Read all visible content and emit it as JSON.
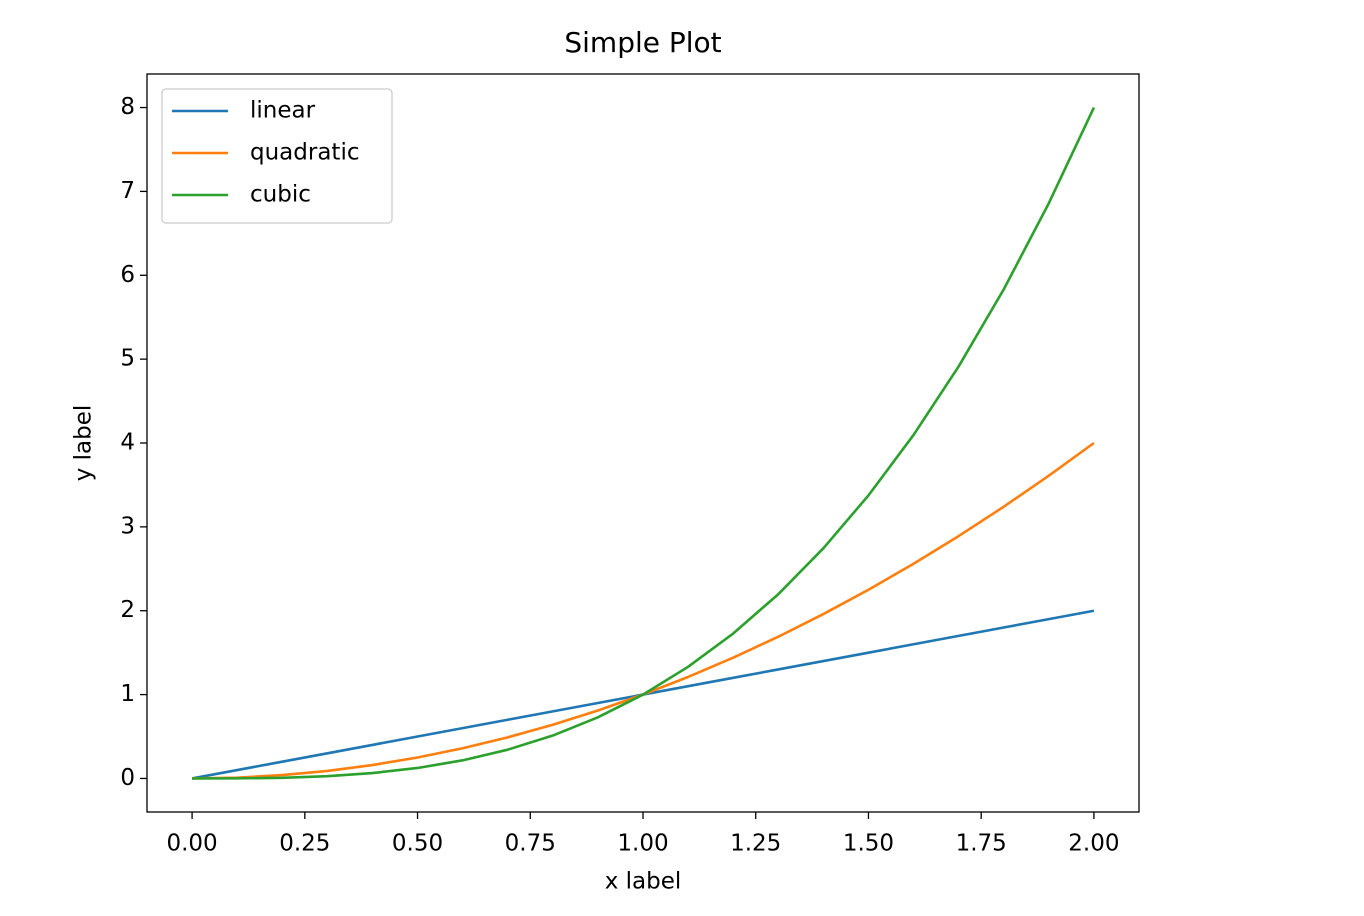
{
  "chart_data": {
    "type": "line",
    "title": "Simple Plot",
    "x_label": "x label",
    "y_label": "y label",
    "x": [
      0,
      0.1,
      0.2,
      0.3,
      0.4,
      0.5,
      0.6,
      0.7,
      0.8,
      0.9,
      1.0,
      1.1,
      1.2,
      1.3,
      1.4,
      1.5,
      1.6,
      1.7,
      1.8,
      1.9,
      2.0
    ],
    "series": [
      {
        "name": "linear",
        "color": "#1f77b4",
        "values": [
          0,
          0.1,
          0.2,
          0.3,
          0.4,
          0.5,
          0.6,
          0.7,
          0.8,
          0.9,
          1.0,
          1.1,
          1.2,
          1.3,
          1.4,
          1.5,
          1.6,
          1.7,
          1.8,
          1.9,
          2.0
        ]
      },
      {
        "name": "quadratic",
        "color": "#ff7f0e",
        "values": [
          0,
          0.01,
          0.04,
          0.09,
          0.16,
          0.25,
          0.36,
          0.49,
          0.64,
          0.81,
          1,
          1.21,
          1.44,
          1.69,
          1.96,
          2.25,
          2.56,
          2.89,
          3.24,
          3.61,
          4
        ]
      },
      {
        "name": "cubic",
        "color": "#2ca02c",
        "values": [
          0,
          0.001,
          0.008,
          0.027,
          0.064,
          0.125,
          0.216,
          0.343,
          0.512,
          0.729,
          1,
          1.331,
          1.728,
          2.197,
          2.744,
          3.375,
          4.096,
          4.913,
          5.832,
          6.859,
          8
        ]
      }
    ],
    "xlim": [
      -0.1,
      2.1
    ],
    "ylim": [
      -0.4,
      8.4
    ],
    "xticks": [
      {
        "value": 0,
        "label": "0.00"
      },
      {
        "value": 0.25,
        "label": "0.25"
      },
      {
        "value": 0.5,
        "label": "0.50"
      },
      {
        "value": 0.75,
        "label": "0.75"
      },
      {
        "value": 1,
        "label": "1.00"
      },
      {
        "value": 1.25,
        "label": "1.25"
      },
      {
        "value": 1.5,
        "label": "1.50"
      },
      {
        "value": 1.75,
        "label": "1.75"
      },
      {
        "value": 2,
        "label": "2.00"
      }
    ],
    "yticks": [
      0,
      1,
      2,
      3,
      4,
      5,
      6,
      7,
      8
    ],
    "grid": false,
    "legend": "upper left"
  }
}
